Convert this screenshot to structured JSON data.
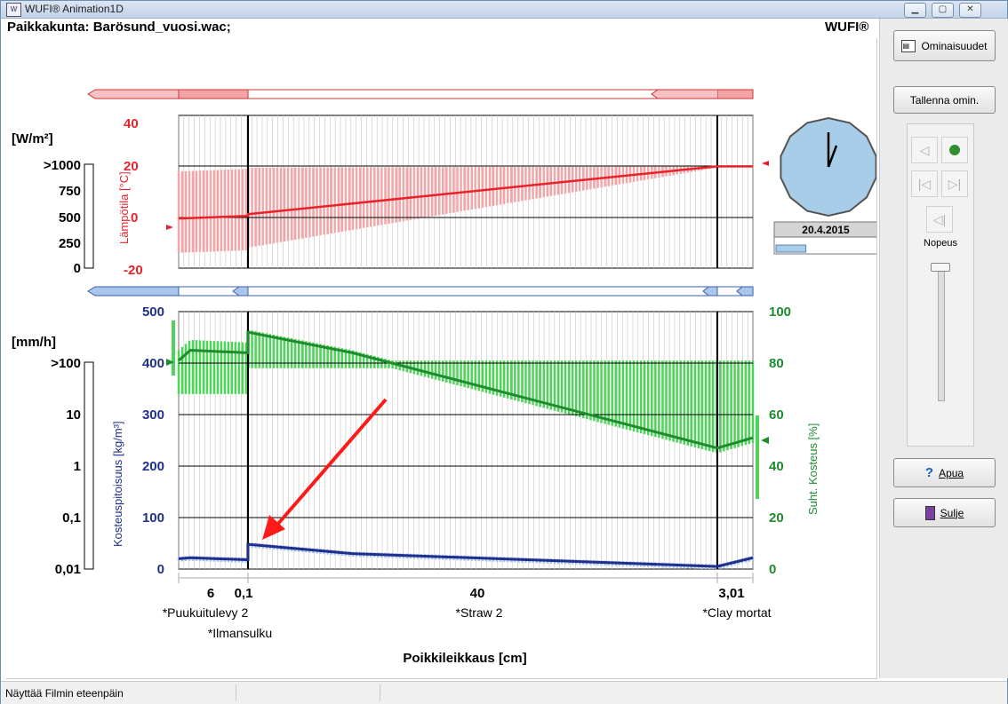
{
  "window": {
    "title": "WUFI® Animation1D",
    "app_icon": "wufi-app-icon",
    "minimize_icon": "minimize-icon",
    "maximize_icon": "maximize-icon",
    "close_icon": "close-icon"
  },
  "header": {
    "location": "Paikkakunta: Barösund_vuosi.wac;",
    "brand": "WUFI®"
  },
  "sidebar": {
    "properties_button": "Ominaisuudet",
    "save_properties_button": "Tallenna omin.",
    "help_button": "Apua",
    "close_button": "Sulje",
    "speed_label": "Nopeus",
    "play_icon": "play-icon",
    "step_back_icon": "step-back-icon",
    "first_frame_icon": "first-frame-icon",
    "last_frame_icon": "last-frame-icon",
    "step_forward_icon": "step-forward-icon"
  },
  "clock": {
    "date": "20.4.2015",
    "progress_fraction": 0.3
  },
  "status": {
    "text": "Näyttää Filmin eteenpäin"
  },
  "colors": {
    "temperature": "#e8222a",
    "temperature_band": "#f4a3a7",
    "moisture": "#1f2f8c",
    "moisture_band": "#a9c6ec",
    "rh": "#1c8c2c",
    "rh_band": "#4fd35b",
    "clock_face": "#a8cde9"
  },
  "chart_data": [
    {
      "type": "line",
      "name": "temperature-profile",
      "ylabel_left_flux": "[W/m²]",
      "flux_ticks": [
        ">1000",
        "750",
        "500",
        "250",
        "0"
      ],
      "ylabel_temp": "Lämpötila [°C]",
      "temp_ticks": [
        "40",
        "20",
        "0",
        "-20"
      ],
      "ylim": [
        -20,
        40
      ],
      "x": [
        0,
        6,
        6.1,
        46.1,
        49.11
      ],
      "series": [
        {
          "values": [
            -0.5,
            0.5,
            1.2,
            20,
            20
          ]
        }
      ],
      "band_max": [
        18,
        19,
        19.5,
        20,
        20
      ],
      "band_min": [
        -14,
        -13,
        -12,
        19.5,
        19.5
      ]
    },
    {
      "type": "line",
      "name": "moisture-profile",
      "ylabel_left_rain": "[mm/h]",
      "rain_ticks": [
        ">100",
        "10",
        "1",
        "0,1",
        "0,01"
      ],
      "ylabel_water": "Kosteuspitoisuus [kg/m³]",
      "water_ticks": [
        "500",
        "400",
        "300",
        "200",
        "100",
        "0"
      ],
      "ylim_water": [
        0,
        500
      ],
      "ylabel_rh": "Suht. Kosteus [%]",
      "rh_ticks": [
        "100",
        "80",
        "60",
        "40",
        "20",
        "0"
      ],
      "ylim_rh": [
        0,
        100
      ],
      "x": [
        0,
        1,
        6,
        6.1,
        15,
        46.1,
        49.11
      ],
      "series": [
        {
          "name": "water",
          "values": [
            20,
            22,
            18,
            48,
            30,
            5,
            22
          ]
        },
        {
          "name": "rh",
          "values": [
            81,
            85,
            84,
            92,
            84,
            47,
            51
          ]
        }
      ],
      "layer_widths_cm": [
        "6",
        "0,1",
        "40",
        "3,01"
      ],
      "layers": [
        "*Puukuitulevy 2",
        "*Ilmansulku",
        "*Straw 2",
        "*Clay mortat"
      ],
      "xlabel": "Poikkileikkaus [cm]"
    }
  ]
}
